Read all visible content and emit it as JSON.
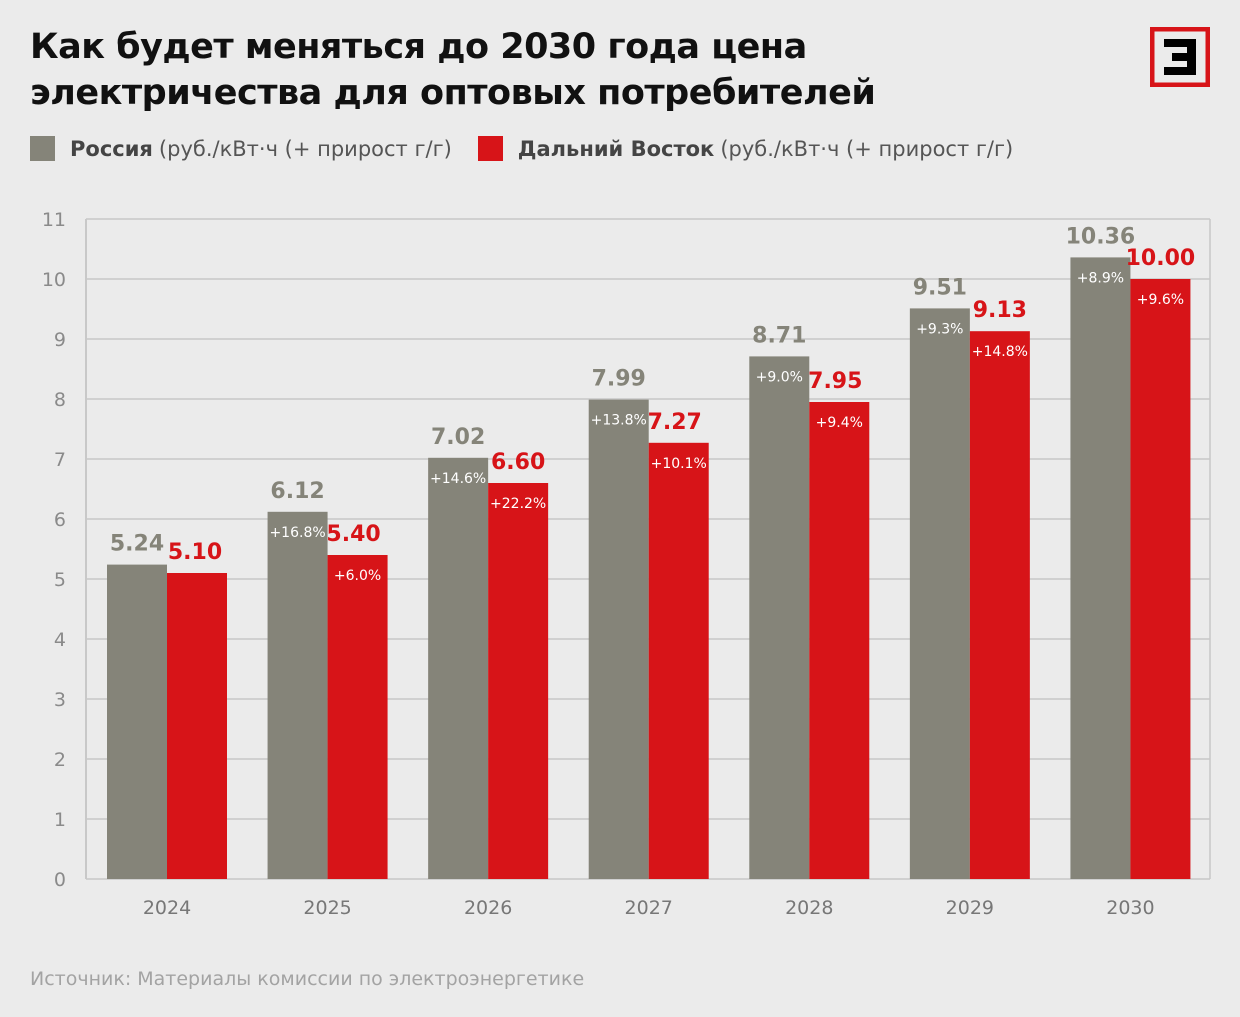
{
  "title": [
    "Как будет меняться до 2030 года цена",
    "электричества для оптовых потребителей"
  ],
  "logo_text": "Э",
  "legend": [
    {
      "bold": "Россия",
      "rest": "(руб./кВт·ч (+ прирост г/г)",
      "color": "#858479"
    },
    {
      "bold": "Дальний Восток",
      "rest": "(руб./кВт·ч (+ прирост г/г)",
      "color": "#d71418"
    }
  ],
  "source": "Источник: Материалы комиссии по электроэнергетике",
  "colors": {
    "background": "#ebebeb",
    "grid": "#c8c8c8",
    "russia": "#858479",
    "far_east": "#d71418",
    "russia_label": "#858479",
    "far_east_label": "#d71418"
  },
  "chart_data": {
    "type": "bar",
    "categories": [
      "2024",
      "2025",
      "2026",
      "2027",
      "2028",
      "2029",
      "2030"
    ],
    "series": [
      {
        "name": "Россия",
        "values": [
          5.24,
          6.12,
          7.02,
          7.99,
          8.71,
          9.51,
          10.36
        ],
        "labels": [
          "5.24",
          "6.12",
          "7.02",
          "7.99",
          "8.71",
          "9.51",
          "10.36"
        ],
        "growth": [
          "",
          "+16.8%",
          "+14.6%",
          "+13.8%",
          "+9.0%",
          "+9.3%",
          "+8.9%"
        ]
      },
      {
        "name": "Дальний Восток",
        "values": [
          5.1,
          5.4,
          6.6,
          7.27,
          7.95,
          9.13,
          10.0
        ],
        "labels": [
          "5.10",
          "5.40",
          "6.60",
          "7.27",
          "7.95",
          "9.13",
          "10.00"
        ],
        "growth": [
          "",
          "+6.0%",
          "+22.2%",
          "+10.1%",
          "+9.4%",
          "+14.8%",
          "+9.6%"
        ]
      }
    ],
    "yticks": [
      "0",
      "1",
      "2",
      "3",
      "4",
      "5",
      "6",
      "7",
      "8",
      "9",
      "10",
      "11"
    ],
    "ylim": [
      0,
      11
    ],
    "grid": true,
    "legend_position": "top-left"
  }
}
